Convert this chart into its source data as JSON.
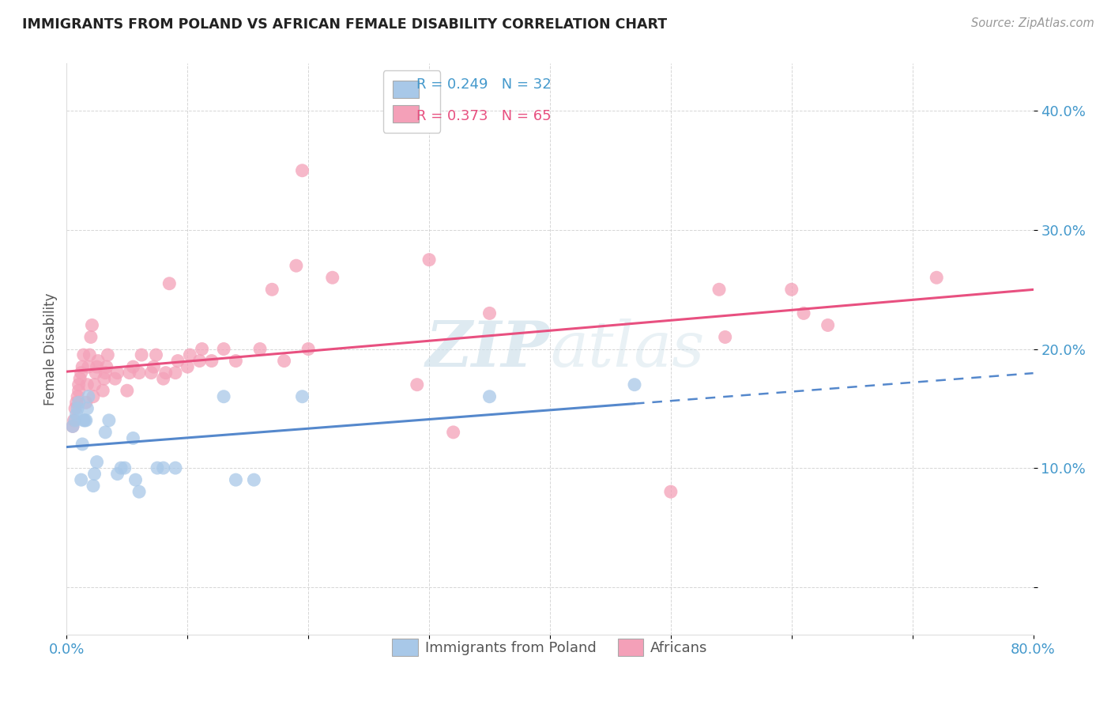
{
  "title": "IMMIGRANTS FROM POLAND VS AFRICAN FEMALE DISABILITY CORRELATION CHART",
  "source": "Source: ZipAtlas.com",
  "ylabel": "Female Disability",
  "xlim": [
    0.0,
    0.8
  ],
  "ylim": [
    -0.04,
    0.44
  ],
  "yticks": [
    0.0,
    0.1,
    0.2,
    0.3,
    0.4
  ],
  "ytick_labels": [
    "",
    "10.0%",
    "20.0%",
    "30.0%",
    "40.0%"
  ],
  "xticks": [
    0.0,
    0.1,
    0.2,
    0.3,
    0.4,
    0.5,
    0.6,
    0.7,
    0.8
  ],
  "xtick_labels": [
    "0.0%",
    "",
    "",
    "",
    "",
    "",
    "",
    "",
    "80.0%"
  ],
  "color_blue": "#a8c8e8",
  "color_pink": "#f4a0b8",
  "line_color_blue": "#5588cc",
  "line_color_pink": "#e85080",
  "watermark_color": "#d8e8f0",
  "poland_x": [
    0.005,
    0.007,
    0.008,
    0.009,
    0.01,
    0.012,
    0.013,
    0.014,
    0.015,
    0.016,
    0.017,
    0.018,
    0.022,
    0.023,
    0.025,
    0.032,
    0.035,
    0.042,
    0.045,
    0.048,
    0.055,
    0.057,
    0.06,
    0.075,
    0.08,
    0.09,
    0.13,
    0.14,
    0.155,
    0.195,
    0.35,
    0.47
  ],
  "poland_y": [
    0.135,
    0.14,
    0.145,
    0.15,
    0.155,
    0.09,
    0.12,
    0.14,
    0.14,
    0.14,
    0.15,
    0.16,
    0.085,
    0.095,
    0.105,
    0.13,
    0.14,
    0.095,
    0.1,
    0.1,
    0.125,
    0.09,
    0.08,
    0.1,
    0.1,
    0.1,
    0.16,
    0.09,
    0.09,
    0.16,
    0.16,
    0.17
  ],
  "african_x": [
    0.005,
    0.006,
    0.007,
    0.008,
    0.009,
    0.01,
    0.01,
    0.011,
    0.012,
    0.013,
    0.014,
    0.016,
    0.017,
    0.018,
    0.019,
    0.02,
    0.021,
    0.022,
    0.023,
    0.024,
    0.025,
    0.026,
    0.03,
    0.031,
    0.032,
    0.033,
    0.034,
    0.04,
    0.042,
    0.05,
    0.052,
    0.055,
    0.06,
    0.062,
    0.07,
    0.072,
    0.074,
    0.08,
    0.082,
    0.085,
    0.09,
    0.092,
    0.1,
    0.102,
    0.11,
    0.112,
    0.12,
    0.13,
    0.14,
    0.16,
    0.17,
    0.18,
    0.19,
    0.195,
    0.2,
    0.22,
    0.29,
    0.3,
    0.32,
    0.35,
    0.5,
    0.54,
    0.545,
    0.6,
    0.61,
    0.63,
    0.72
  ],
  "african_y": [
    0.135,
    0.14,
    0.15,
    0.155,
    0.16,
    0.165,
    0.17,
    0.175,
    0.18,
    0.185,
    0.195,
    0.155,
    0.17,
    0.185,
    0.195,
    0.21,
    0.22,
    0.16,
    0.17,
    0.18,
    0.185,
    0.19,
    0.165,
    0.175,
    0.18,
    0.185,
    0.195,
    0.175,
    0.18,
    0.165,
    0.18,
    0.185,
    0.18,
    0.195,
    0.18,
    0.185,
    0.195,
    0.175,
    0.18,
    0.255,
    0.18,
    0.19,
    0.185,
    0.195,
    0.19,
    0.2,
    0.19,
    0.2,
    0.19,
    0.2,
    0.25,
    0.19,
    0.27,
    0.35,
    0.2,
    0.26,
    0.17,
    0.275,
    0.13,
    0.23,
    0.08,
    0.25,
    0.21,
    0.25,
    0.23,
    0.22,
    0.26
  ]
}
